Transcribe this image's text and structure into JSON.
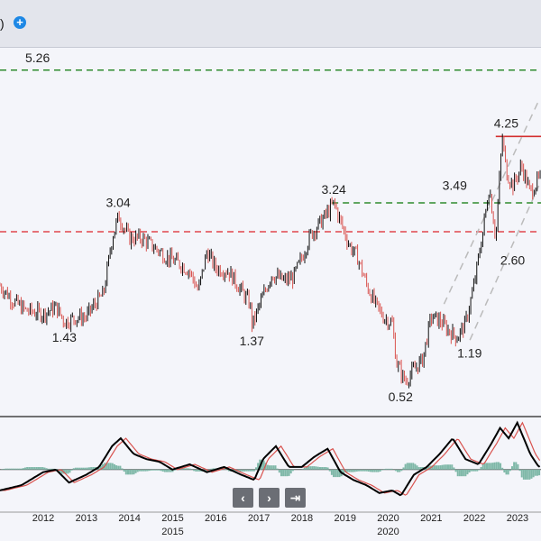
{
  "header": {
    "title_fragment": ")",
    "add_icon": "plus-circle-icon",
    "add_glyph": "+"
  },
  "navigation": {
    "prev_icon": "chevron-left-icon",
    "prev_glyph": "‹",
    "next_icon": "chevron-right-icon",
    "next_glyph": "›",
    "end_icon": "jump-to-end-icon",
    "end_glyph": "⇥"
  },
  "chart_data": {
    "type": "line",
    "grid": false,
    "legend": "none",
    "colors": {
      "up_candle": "#111111",
      "down_candle": "#d9534f",
      "resistance": "#2e8b2e",
      "support": "#e0474c",
      "top_line": "#d32f2f",
      "channel": "#bbbbbb",
      "oscillator_main": "#000000",
      "oscillator_signal": "#d9534f",
      "histogram": "#7fb8a8"
    },
    "x_ticks": [
      "2012",
      "2013",
      "2014",
      "2015",
      "2016",
      "2017",
      "2018",
      "2019",
      "2020",
      "2021",
      "2022",
      "2023"
    ],
    "x_ticks_lower_row": [
      "2015",
      "2020"
    ],
    "price_series": {
      "x": [
        2011.0,
        2011.3,
        2011.6,
        2012.0,
        2012.3,
        2012.5,
        2012.8,
        2013.0,
        2013.2,
        2013.4,
        2013.6,
        2013.75,
        2014.0,
        2014.3,
        2014.6,
        2014.9,
        2015.2,
        2015.4,
        2015.6,
        2015.8,
        2016.0,
        2016.3,
        2016.6,
        2016.8,
        2016.85,
        2017.0,
        2017.3,
        2017.6,
        2017.8,
        2018.0,
        2018.2,
        2018.5,
        2018.75,
        2018.9,
        2019.1,
        2019.3,
        2019.5,
        2019.7,
        2019.9,
        2020.1,
        2020.2,
        2020.4,
        2020.6,
        2020.8,
        2021.0,
        2021.2,
        2021.4,
        2021.6,
        2021.8,
        2022.0,
        2022.2,
        2022.35,
        2022.5,
        2022.65,
        2022.75,
        2022.9,
        2023.1,
        2023.3,
        2023.5
      ],
      "y": [
        1.98,
        1.75,
        1.6,
        1.55,
        1.65,
        1.43,
        1.5,
        1.5,
        1.7,
        1.85,
        2.7,
        3.04,
        2.7,
        2.7,
        2.55,
        2.4,
        2.3,
        2.2,
        1.9,
        2.5,
        2.25,
        2.2,
        1.9,
        1.7,
        1.37,
        1.65,
        2.15,
        2.05,
        2.1,
        2.4,
        2.75,
        3.0,
        3.24,
        2.95,
        2.6,
        2.4,
        2.0,
        1.7,
        1.5,
        1.4,
        0.8,
        0.52,
        0.7,
        0.85,
        1.5,
        1.45,
        1.3,
        1.19,
        1.4,
        2.0,
        2.8,
        3.49,
        2.7,
        4.25,
        3.7,
        3.5,
        3.8,
        3.4,
        3.6
      ]
    },
    "horizontal_levels": [
      {
        "value": 5.26,
        "label": "5.26",
        "style": "resistance"
      },
      {
        "value": 3.24,
        "label": "",
        "style": "resistance"
      },
      {
        "value": 2.8,
        "label": "",
        "style": "support"
      }
    ],
    "top_line": {
      "value": 4.25,
      "from_x": 2022.5
    },
    "annotations": [
      {
        "x": 2012.5,
        "y": 1.43,
        "text": "1.43",
        "pos": "below"
      },
      {
        "x": 2013.75,
        "y": 3.04,
        "text": "3.04",
        "pos": "above"
      },
      {
        "x": 2016.85,
        "y": 1.37,
        "text": "1.37",
        "pos": "below"
      },
      {
        "x": 2018.75,
        "y": 3.24,
        "text": "3.24",
        "pos": "above"
      },
      {
        "x": 2020.3,
        "y": 0.52,
        "text": "0.52",
        "pos": "below"
      },
      {
        "x": 2021.9,
        "y": 1.19,
        "text": "1.19",
        "pos": "below"
      },
      {
        "x": 2022.35,
        "y": 3.49,
        "text": "3.49",
        "pos": "left"
      },
      {
        "x": 2022.75,
        "y": 4.25,
        "text": "4.25",
        "pos": "above"
      },
      {
        "x": 2022.9,
        "y": 2.6,
        "text": "2.60",
        "pos": "below"
      }
    ],
    "channel_lines": [
      {
        "from": [
          2021.3,
          1.7
        ],
        "to": [
          2023.5,
          4.8
        ]
      },
      {
        "from": [
          2021.9,
          1.15
        ],
        "to": [
          2023.5,
          3.5
        ]
      }
    ],
    "oscillator": {
      "x": [
        2011.0,
        2011.5,
        2012.0,
        2012.3,
        2012.6,
        2013.0,
        2013.3,
        2013.6,
        2013.8,
        2014.1,
        2014.4,
        2014.7,
        2015.0,
        2015.4,
        2015.8,
        2016.2,
        2016.6,
        2016.9,
        2017.1,
        2017.4,
        2017.7,
        2018.0,
        2018.3,
        2018.6,
        2018.9,
        2019.2,
        2019.5,
        2019.8,
        2020.1,
        2020.3,
        2020.6,
        2020.9,
        2021.2,
        2021.5,
        2021.8,
        2022.1,
        2022.4,
        2022.6,
        2022.8,
        2023.0,
        2023.3,
        2023.5
      ],
      "main": [
        -0.4,
        -0.3,
        -0.05,
        0.0,
        -0.25,
        -0.1,
        0.05,
        0.45,
        0.6,
        0.3,
        0.2,
        0.15,
        0.0,
        0.1,
        -0.05,
        0.05,
        -0.1,
        -0.2,
        0.2,
        0.45,
        0.05,
        0.05,
        0.25,
        0.4,
        -0.05,
        -0.2,
        -0.3,
        -0.45,
        -0.4,
        -0.5,
        -0.1,
        0.05,
        0.3,
        0.6,
        0.2,
        0.1,
        0.5,
        0.8,
        0.6,
        0.9,
        0.3,
        0.05
      ],
      "ylim": [
        -0.8,
        1.0
      ]
    },
    "price_ylim": [
      0.0,
      5.6
    ],
    "xlim": [
      2011.0,
      2023.55
    ]
  }
}
